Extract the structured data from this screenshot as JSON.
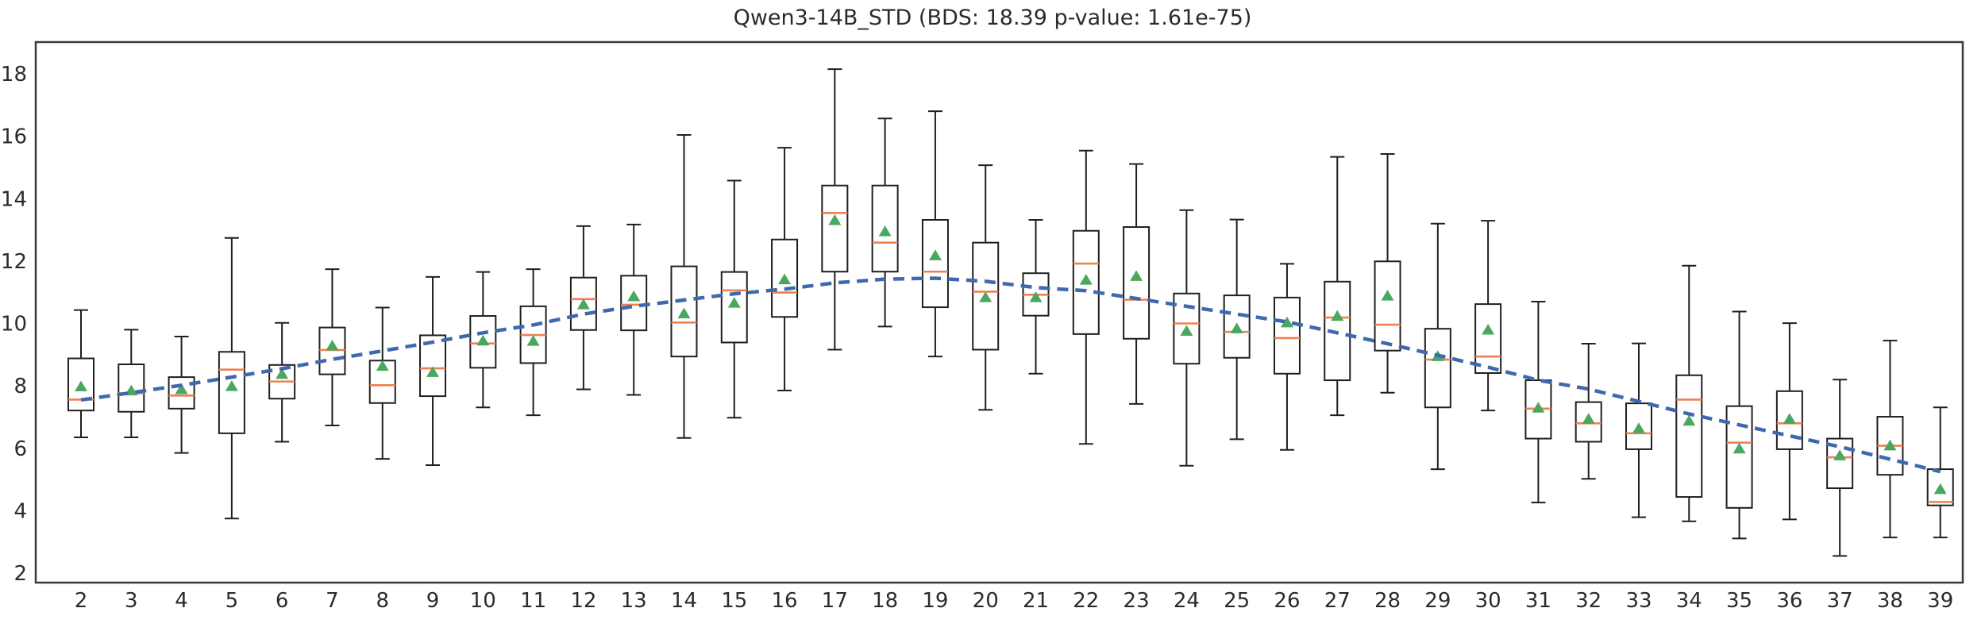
{
  "title": "Qwen3-14B_STD (BDS: 18.39 p-value: 1.61e-75)",
  "colors": {
    "background": "#ffffff",
    "spine": "#3a3a3a",
    "box_edge": "#1f1f1f",
    "box_fill": "#ffffff",
    "median": "#ee8153",
    "mean_marker": "#4aa85e",
    "trend_line": "#4068ae",
    "text": "#2b2b2b"
  },
  "chart_data": {
    "type": "boxplot",
    "title": "Qwen3-14B_STD (BDS: 18.39 p-value: 1.61e-75)",
    "xlabel": "",
    "ylabel": "",
    "grid": false,
    "legend": false,
    "ylim": [
      1.7,
      19.0
    ],
    "y_ticks": [
      2,
      4,
      6,
      8,
      10,
      12,
      14,
      16,
      18
    ],
    "x_ticks": [
      2,
      3,
      4,
      5,
      6,
      7,
      8,
      9,
      10,
      11,
      12,
      13,
      14,
      15,
      16,
      17,
      18,
      19,
      20,
      21,
      22,
      23,
      24,
      25,
      26,
      27,
      28,
      29,
      30,
      31,
      32,
      33,
      34,
      35,
      36,
      37,
      38,
      39
    ],
    "boxes": [
      {
        "x": 2,
        "whisker_low": 6.35,
        "q1": 7.21,
        "median": 7.56,
        "mean": 7.99,
        "q3": 8.88,
        "whisker_high": 10.43
      },
      {
        "x": 3,
        "whisker_low": 6.35,
        "q1": 7.17,
        "median": 7.76,
        "mean": 7.86,
        "q3": 8.69,
        "whisker_high": 9.8
      },
      {
        "x": 4,
        "whisker_low": 5.85,
        "q1": 7.27,
        "median": 7.69,
        "mean": 7.9,
        "q3": 8.28,
        "whisker_high": 9.58
      },
      {
        "x": 5,
        "whisker_low": 3.75,
        "q1": 6.48,
        "median": 8.52,
        "mean": 8.0,
        "q3": 9.09,
        "whisker_high": 12.74
      },
      {
        "x": 6,
        "whisker_low": 6.21,
        "q1": 7.59,
        "median": 8.14,
        "mean": 8.39,
        "q3": 8.67,
        "whisker_high": 10.02
      },
      {
        "x": 7,
        "whisker_low": 6.73,
        "q1": 8.37,
        "median": 9.15,
        "mean": 9.3,
        "q3": 9.87,
        "whisker_high": 11.74
      },
      {
        "x": 8,
        "whisker_low": 5.66,
        "q1": 7.45,
        "median": 8.02,
        "mean": 8.65,
        "q3": 8.81,
        "whisker_high": 10.51
      },
      {
        "x": 9,
        "whisker_low": 5.46,
        "q1": 7.67,
        "median": 8.56,
        "mean": 8.45,
        "q3": 9.62,
        "whisker_high": 11.49
      },
      {
        "x": 10,
        "whisker_low": 7.31,
        "q1": 8.58,
        "median": 9.36,
        "mean": 9.46,
        "q3": 10.24,
        "whisker_high": 11.65
      },
      {
        "x": 11,
        "whisker_low": 7.06,
        "q1": 8.73,
        "median": 9.63,
        "mean": 9.45,
        "q3": 10.55,
        "whisker_high": 11.74
      },
      {
        "x": 12,
        "whisker_low": 7.89,
        "q1": 9.79,
        "median": 10.78,
        "mean": 10.62,
        "q3": 11.47,
        "whisker_high": 13.12
      },
      {
        "x": 13,
        "whisker_low": 7.71,
        "q1": 9.78,
        "median": 10.6,
        "mean": 10.88,
        "q3": 11.53,
        "whisker_high": 13.17
      },
      {
        "x": 14,
        "whisker_low": 6.33,
        "q1": 8.94,
        "median": 10.03,
        "mean": 10.33,
        "q3": 11.83,
        "whisker_high": 16.04
      },
      {
        "x": 15,
        "whisker_low": 6.98,
        "q1": 9.39,
        "median": 11.06,
        "mean": 10.67,
        "q3": 11.65,
        "whisker_high": 14.58
      },
      {
        "x": 16,
        "whisker_low": 7.85,
        "q1": 10.21,
        "median": 10.99,
        "mean": 11.42,
        "q3": 12.69,
        "whisker_high": 15.63
      },
      {
        "x": 17,
        "whisker_low": 9.16,
        "q1": 11.66,
        "median": 13.54,
        "mean": 13.32,
        "q3": 14.42,
        "whisker_high": 18.15
      },
      {
        "x": 18,
        "whisker_low": 9.9,
        "q1": 11.66,
        "median": 12.59,
        "mean": 12.96,
        "q3": 14.42,
        "whisker_high": 16.57
      },
      {
        "x": 19,
        "whisker_low": 8.94,
        "q1": 10.52,
        "median": 11.66,
        "mean": 12.19,
        "q3": 13.32,
        "whisker_high": 16.8
      },
      {
        "x": 20,
        "whisker_low": 7.23,
        "q1": 9.16,
        "median": 11.02,
        "mean": 10.85,
        "q3": 12.59,
        "whisker_high": 15.07
      },
      {
        "x": 21,
        "whisker_low": 8.39,
        "q1": 10.25,
        "median": 10.92,
        "mean": 10.85,
        "q3": 11.61,
        "whisker_high": 13.32
      },
      {
        "x": 22,
        "whisker_low": 6.14,
        "q1": 9.66,
        "median": 11.92,
        "mean": 11.41,
        "q3": 12.97,
        "whisker_high": 15.54
      },
      {
        "x": 23,
        "whisker_low": 7.42,
        "q1": 9.51,
        "median": 10.76,
        "mean": 11.53,
        "q3": 13.09,
        "whisker_high": 15.11
      },
      {
        "x": 24,
        "whisker_low": 5.44,
        "q1": 8.71,
        "median": 10.0,
        "mean": 9.77,
        "q3": 10.96,
        "whisker_high": 13.63
      },
      {
        "x": 25,
        "whisker_low": 6.29,
        "q1": 8.9,
        "median": 9.73,
        "mean": 9.85,
        "q3": 10.9,
        "whisker_high": 13.33
      },
      {
        "x": 26,
        "whisker_low": 5.95,
        "q1": 8.39,
        "median": 9.53,
        "mean": 10.04,
        "q3": 10.83,
        "whisker_high": 11.91
      },
      {
        "x": 27,
        "whisker_low": 7.06,
        "q1": 8.18,
        "median": 10.19,
        "mean": 10.25,
        "q3": 11.34,
        "whisker_high": 15.34
      },
      {
        "x": 28,
        "whisker_low": 7.78,
        "q1": 9.13,
        "median": 9.96,
        "mean": 10.9,
        "q3": 11.99,
        "whisker_high": 15.43
      },
      {
        "x": 29,
        "whisker_low": 5.33,
        "q1": 7.31,
        "median": 8.84,
        "mean": 8.96,
        "q3": 9.83,
        "whisker_high": 13.2
      },
      {
        "x": 30,
        "whisker_low": 7.21,
        "q1": 8.41,
        "median": 8.94,
        "mean": 9.81,
        "q3": 10.62,
        "whisker_high": 13.29
      },
      {
        "x": 31,
        "whisker_low": 4.26,
        "q1": 6.31,
        "median": 7.27,
        "mean": 7.31,
        "q3": 8.18,
        "whisker_high": 10.7
      },
      {
        "x": 32,
        "whisker_low": 5.02,
        "q1": 6.21,
        "median": 6.8,
        "mean": 6.95,
        "q3": 7.48,
        "whisker_high": 9.35
      },
      {
        "x": 33,
        "whisker_low": 3.79,
        "q1": 5.97,
        "median": 6.48,
        "mean": 6.65,
        "q3": 7.44,
        "whisker_high": 9.36
      },
      {
        "x": 34,
        "whisker_low": 3.66,
        "q1": 4.44,
        "median": 7.56,
        "mean": 6.89,
        "q3": 8.34,
        "whisker_high": 11.85
      },
      {
        "x": 35,
        "whisker_low": 3.11,
        "q1": 4.09,
        "median": 6.18,
        "mean": 6.0,
        "q3": 7.35,
        "whisker_high": 10.38
      },
      {
        "x": 36,
        "whisker_low": 3.72,
        "q1": 5.97,
        "median": 6.8,
        "mean": 6.95,
        "q3": 7.83,
        "whisker_high": 10.01
      },
      {
        "x": 37,
        "whisker_low": 2.55,
        "q1": 4.72,
        "median": 5.71,
        "mean": 5.78,
        "q3": 6.31,
        "whisker_high": 8.2
      },
      {
        "x": 38,
        "whisker_low": 3.14,
        "q1": 5.15,
        "median": 6.08,
        "mean": 6.1,
        "q3": 7.01,
        "whisker_high": 9.45
      },
      {
        "x": 39,
        "whisker_low": 3.14,
        "q1": 4.17,
        "median": 4.28,
        "mean": 4.7,
        "q3": 5.33,
        "whisker_high": 7.31
      }
    ],
    "trend": {
      "style": "dashed",
      "x": [
        2,
        3,
        4,
        5,
        6,
        7,
        8,
        9,
        10,
        11,
        12,
        13,
        14,
        15,
        16,
        17,
        18,
        19,
        20,
        21,
        22,
        23,
        24,
        25,
        26,
        27,
        28,
        29,
        30,
        31,
        32,
        33,
        34,
        35,
        36,
        37,
        38,
        39
      ],
      "y": [
        7.55,
        7.78,
        8.02,
        8.28,
        8.55,
        8.85,
        9.12,
        9.4,
        9.7,
        9.95,
        10.3,
        10.55,
        10.75,
        10.95,
        11.1,
        11.3,
        11.42,
        11.45,
        11.35,
        11.15,
        11.05,
        10.8,
        10.55,
        10.3,
        10.05,
        9.7,
        9.35,
        8.98,
        8.6,
        8.18,
        7.9,
        7.5,
        7.1,
        6.75,
        6.4,
        6.05,
        5.65,
        5.25
      ]
    },
    "marker_legend": {
      "median_line": "orange horizontal line",
      "mean_marker": "green triangle",
      "trend_line": "blue dashed line"
    }
  }
}
